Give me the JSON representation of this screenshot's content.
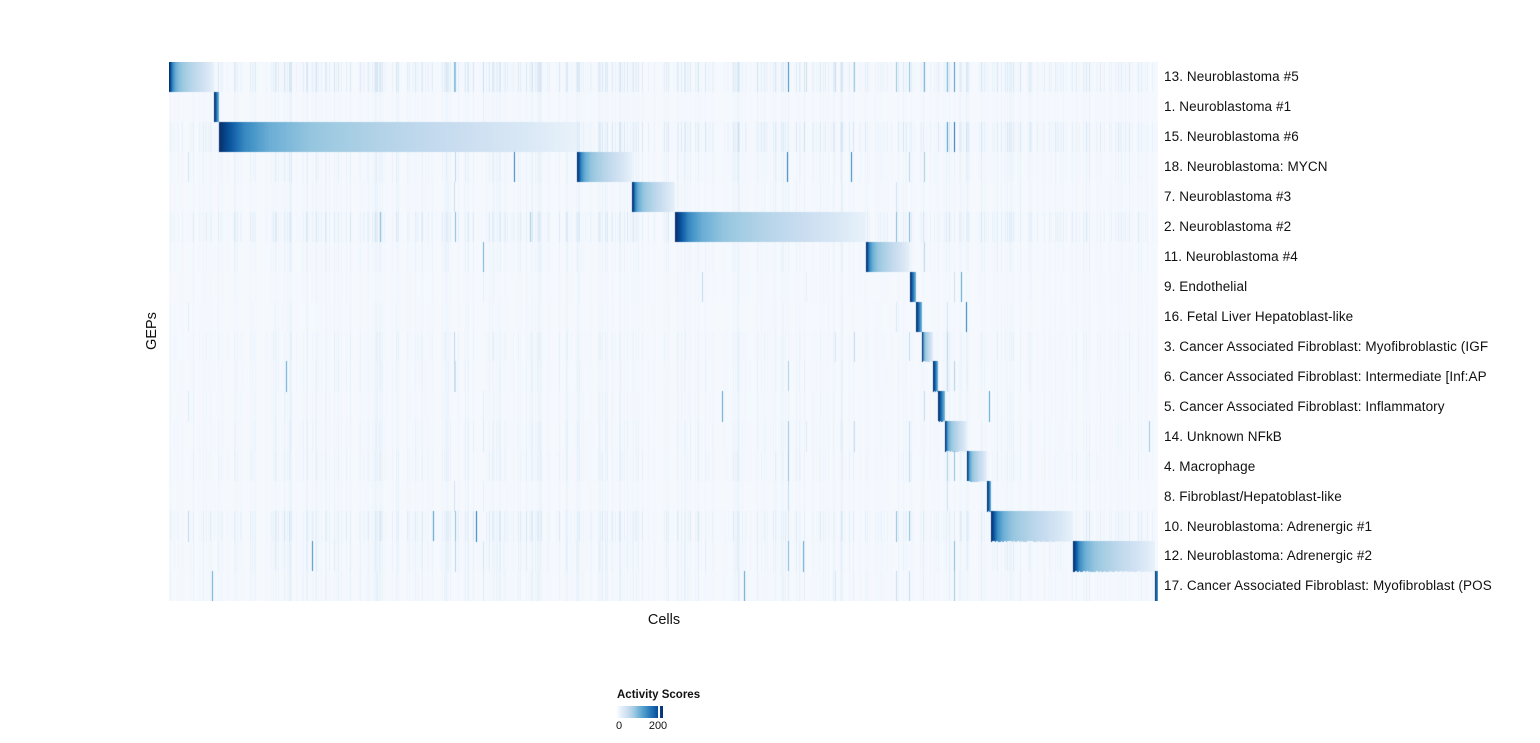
{
  "chart_data": {
    "type": "heatmap",
    "xlabel": "Cells",
    "ylabel": "GEPs",
    "colormap": {
      "name": "Blues",
      "stops": [
        "#f7fbff",
        "#deebf7",
        "#c6dbef",
        "#9ecae1",
        "#6baed6",
        "#4292c6",
        "#2171b5",
        "#08519c",
        "#08306b"
      ]
    },
    "score_range": [
      0,
      220
    ],
    "legend": {
      "title": "Activity Scores",
      "tick_labels": [
        "0",
        "200"
      ],
      "tick_values": [
        0,
        200
      ],
      "max_value": 220,
      "position": "bottom-left"
    },
    "block_profile": [
      [
        0,
        1.0
      ],
      [
        0.025,
        0.88
      ],
      [
        0.07,
        0.66
      ],
      [
        0.14,
        0.5
      ],
      [
        0.25,
        0.4
      ],
      [
        0.45,
        0.31
      ],
      [
        0.65,
        0.24
      ],
      [
        0.85,
        0.15
      ],
      [
        1.0,
        0.07
      ]
    ],
    "noise": {
      "seed": 1337,
      "spike_prob": 0.012,
      "base_intensity": 0.16,
      "dark_line_prob": 0.0015
    },
    "rows": [
      {
        "label": "13. Neuroblastoma #5",
        "block_start": 0.0,
        "block_end": 0.0455,
        "peak_score": 220,
        "noise": 0.8
      },
      {
        "label": "1. Neuroblastoma #1",
        "block_start": 0.0455,
        "block_end": 0.0506,
        "peak_score": 220,
        "noise": 0.35
      },
      {
        "label": "15. Neuroblastoma #6",
        "block_start": 0.0506,
        "block_end": 0.4126,
        "peak_score": 220,
        "noise": 1.0
      },
      {
        "label": "18. Neuroblastoma: MYCN",
        "block_start": 0.4126,
        "block_end": 0.4682,
        "peak_score": 220,
        "noise": 0.55
      },
      {
        "label": "7. Neuroblastoma #3",
        "block_start": 0.4682,
        "block_end": 0.5116,
        "peak_score": 220,
        "noise": 0.4
      },
      {
        "label": "2. Neuroblastoma #2",
        "block_start": 0.5116,
        "block_end": 0.7047,
        "peak_score": 220,
        "noise": 0.9
      },
      {
        "label": "11. Neuroblastoma #4",
        "block_start": 0.7047,
        "block_end": 0.7492,
        "peak_score": 220,
        "noise": 0.45
      },
      {
        "label": "9. Endothelial",
        "block_start": 0.7492,
        "block_end": 0.7553,
        "peak_score": 220,
        "noise": 0.3
      },
      {
        "label": "16. Fetal Liver Hepatoblast-like",
        "block_start": 0.7553,
        "block_end": 0.7614,
        "peak_score": 220,
        "noise": 0.3
      },
      {
        "label": "3. Cancer Associated Fibroblast: Myofibroblastic (IGF",
        "block_start": 0.7614,
        "block_end": 0.7725,
        "peak_score": 220,
        "noise": 0.5
      },
      {
        "label": "6. Cancer Associated Fibroblast: Intermediate [Inf:AP",
        "block_start": 0.7725,
        "block_end": 0.7776,
        "peak_score": 220,
        "noise": 0.45
      },
      {
        "label": "5. Cancer Associated Fibroblast: Inflammatory",
        "block_start": 0.7776,
        "block_end": 0.7846,
        "peak_score": 220,
        "noise": 0.4
      },
      {
        "label": "14. Unknown NFkB",
        "block_start": 0.7846,
        "block_end": 0.8069,
        "peak_score": 220,
        "noise": 0.5
      },
      {
        "label": "4. Macrophage",
        "block_start": 0.8069,
        "block_end": 0.8271,
        "peak_score": 220,
        "noise": 0.55
      },
      {
        "label": "8. Fibroblast/Hepatoblast-like",
        "block_start": 0.8271,
        "block_end": 0.8311,
        "peak_score": 220,
        "noise": 0.35
      },
      {
        "label": "10. Neuroblastoma: Adrenergic #1",
        "block_start": 0.8311,
        "block_end": 0.9141,
        "peak_score": 220,
        "noise": 0.85
      },
      {
        "label": "12. Neuroblastoma: Adrenergic #2",
        "block_start": 0.9141,
        "block_end": 0.997,
        "peak_score": 220,
        "noise": 0.6
      },
      {
        "label": "17. Cancer Associated Fibroblast: Myofibroblast (POS",
        "block_start": 0.997,
        "block_end": 1.0,
        "peak_score": 220,
        "noise": 0.5
      }
    ]
  }
}
